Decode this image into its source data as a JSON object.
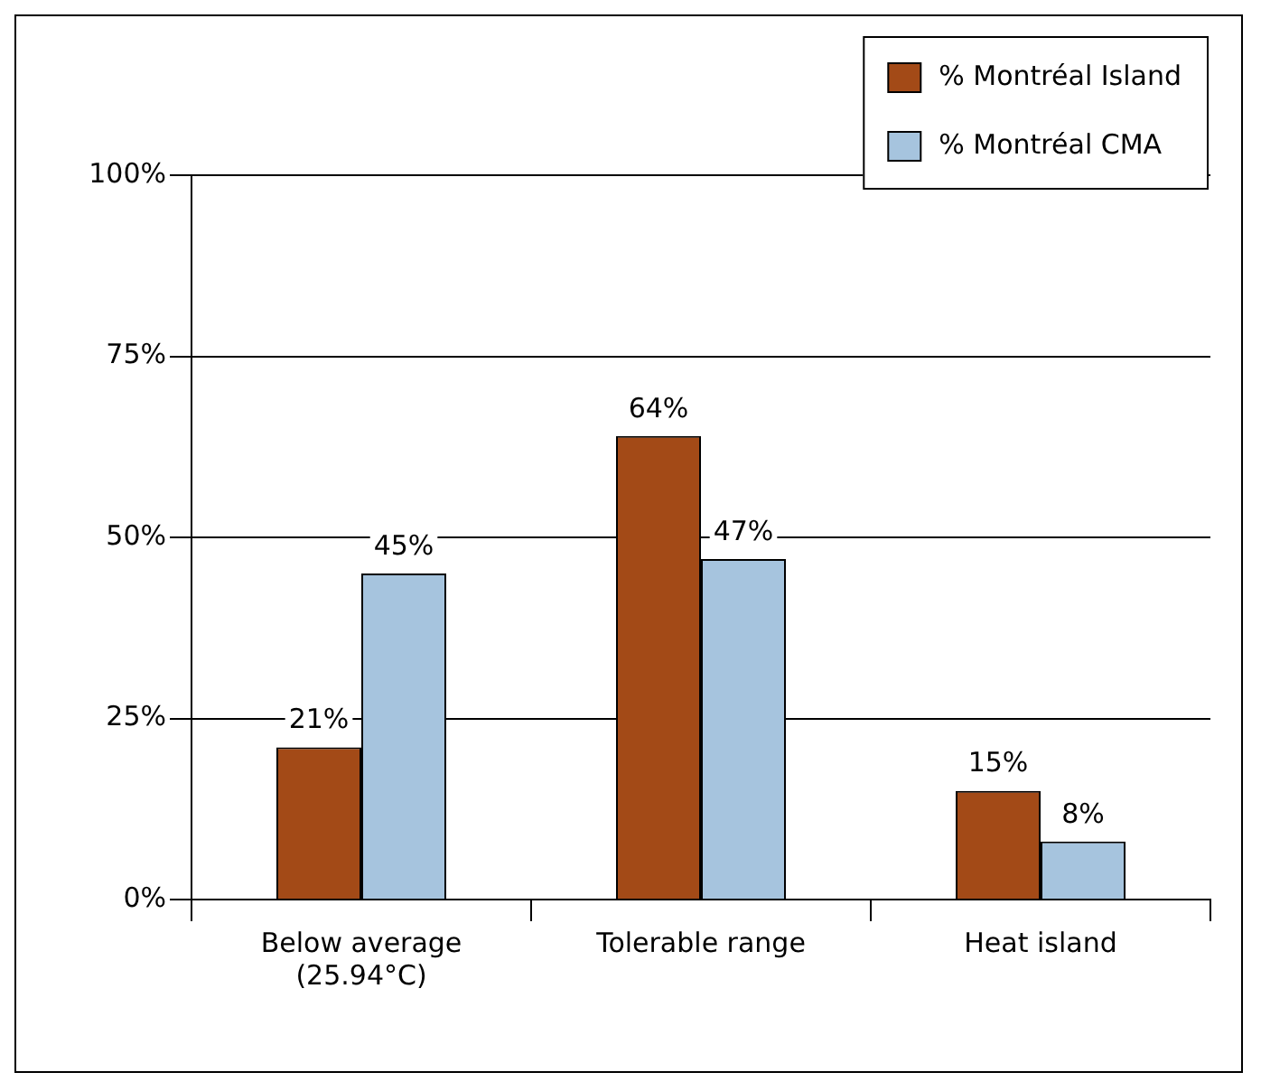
{
  "chart_data": {
    "type": "bar",
    "categories": [
      "Below average\n(25.94°C)",
      "Tolerable range",
      "Heat island"
    ],
    "series": [
      {
        "name": "% Montréal Island",
        "color": "#a34a17",
        "values": [
          21,
          64,
          15
        ]
      },
      {
        "name": "% Montréal CMA",
        "color": "#a6c4de",
        "values": [
          45,
          47,
          8
        ]
      }
    ],
    "ylim": [
      0,
      100
    ],
    "yticks": [
      {
        "value": 0,
        "label": "0%"
      },
      {
        "value": 25,
        "label": "25%"
      },
      {
        "value": 50,
        "label": "50%"
      },
      {
        "value": 75,
        "label": "75%"
      },
      {
        "value": 100,
        "label": "100%"
      }
    ],
    "grid": "y",
    "legend": "top right",
    "value_labels": [
      [
        "21%",
        "64%",
        "15%"
      ],
      [
        "45%",
        "47%",
        "8%"
      ]
    ]
  }
}
